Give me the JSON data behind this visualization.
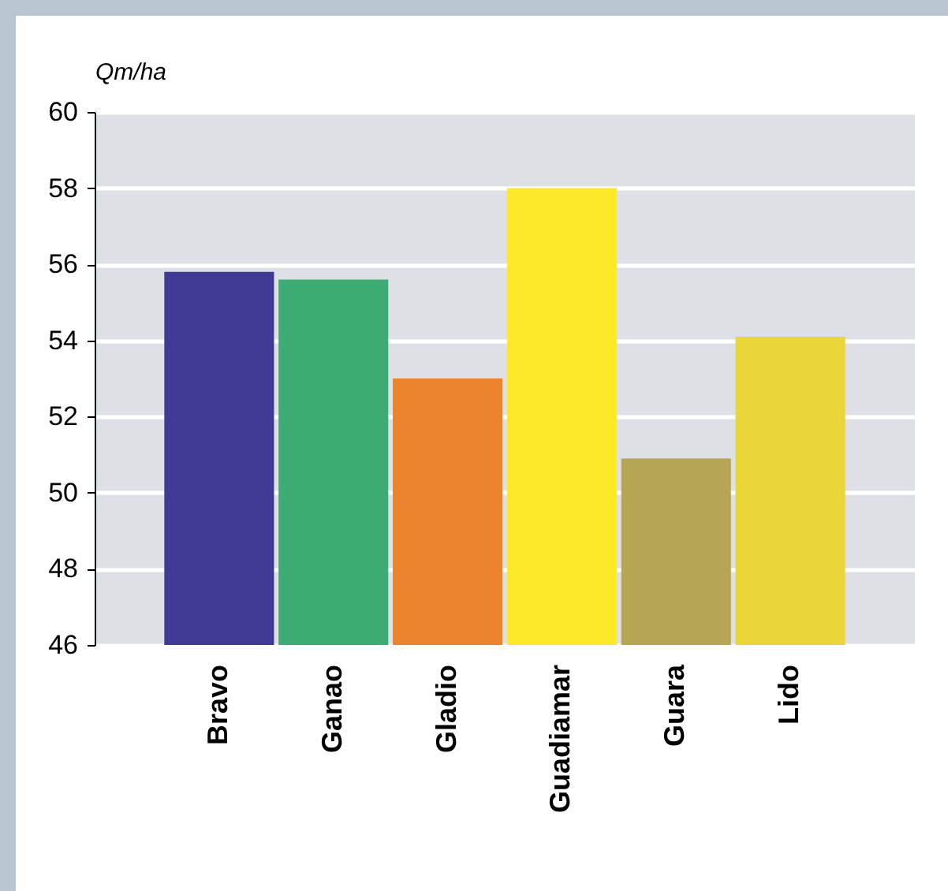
{
  "chart_data": {
    "type": "bar",
    "ylabel": "Qm/ha",
    "categories": [
      "Bravo",
      "Ganao",
      "Gladio",
      "Guadiamar",
      "Guara",
      "Lido"
    ],
    "values": [
      55.8,
      55.6,
      53.0,
      58.0,
      50.9,
      54.1
    ],
    "colors": [
      "#3f3a93",
      "#3dab74",
      "#eb842c",
      "#fde82a",
      "#b5a555",
      "#e8d63a"
    ],
    "ylim": [
      46,
      60
    ],
    "yticks": [
      46,
      48,
      50,
      52,
      54,
      56,
      58,
      60
    ],
    "grid": "y"
  }
}
